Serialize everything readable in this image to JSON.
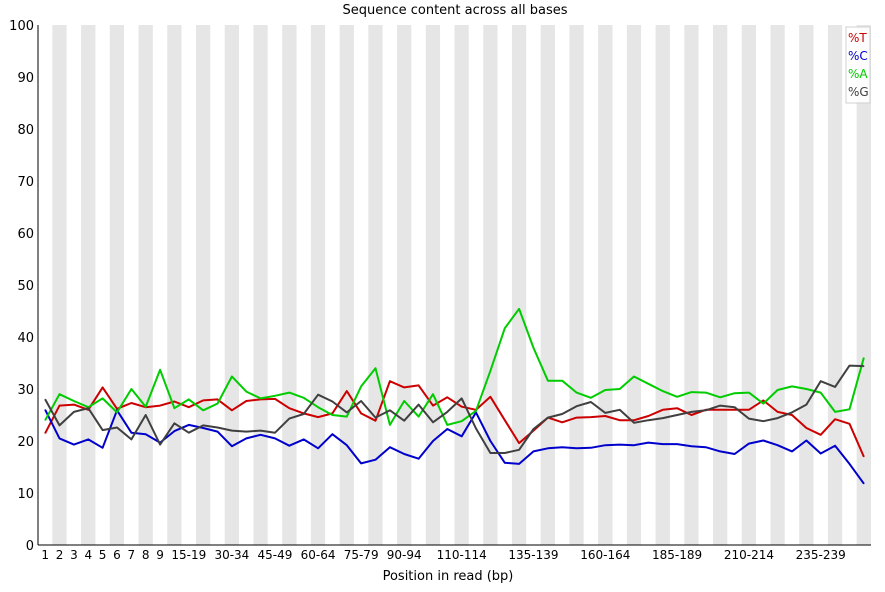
{
  "chart_data": {
    "type": "line",
    "title": "Sequence content across all bases",
    "xlabel": "Position in read (bp)",
    "ylabel": "",
    "ylim": [
      0,
      100
    ],
    "yticks": [
      0,
      10,
      20,
      30,
      40,
      50,
      60,
      70,
      80,
      90,
      100
    ],
    "grid": "vertical alternating bands",
    "legend_position": "top-right",
    "categories": [
      "1",
      "2",
      "3",
      "4",
      "5",
      "6",
      "7",
      "8",
      "9",
      "10-14",
      "15-19",
      "20-24",
      "25-29",
      "30-34",
      "35-39",
      "40-44",
      "45-49",
      "50-54",
      "55-59",
      "60-64",
      "65-69",
      "70-74",
      "75-79",
      "80-84",
      "85-89",
      "90-94",
      "95-99",
      "100-104",
      "105-109",
      "110-114",
      "115-119",
      "120-124",
      "125-129",
      "130-134",
      "135-139",
      "140-144",
      "145-149",
      "150-154",
      "155-159",
      "160-164",
      "165-169",
      "170-174",
      "175-179",
      "180-184",
      "185-189",
      "190-194",
      "195-199",
      "200-204",
      "205-209",
      "210-214",
      "215-219",
      "220-224",
      "225-229",
      "230-234",
      "235-239",
      "240-244",
      "245-249",
      "250-251"
    ],
    "x_tick_labels": [
      "1",
      "2",
      "3",
      "4",
      "5",
      "6",
      "7",
      "8",
      "9",
      "15-19",
      "30-34",
      "45-49",
      "60-64",
      "75-79",
      "90-94",
      "110-114",
      "135-139",
      "160-164",
      "185-189",
      "210-214",
      "235-239"
    ],
    "series": [
      {
        "name": "%T",
        "color": "#cc0000",
        "values": [
          21.5,
          26.8,
          27.0,
          26.0,
          30.3,
          26.2,
          27.3,
          26.5,
          26.8,
          27.6,
          26.5,
          27.8,
          28.0,
          25.9,
          27.7,
          28.0,
          28.1,
          26.3,
          25.3,
          24.6,
          25.3,
          29.6,
          25.3,
          23.9,
          31.5,
          30.3,
          30.7,
          26.8,
          28.4,
          26.6,
          26.0,
          28.5,
          24.0,
          19.6,
          22.0,
          24.5,
          23.6,
          24.5,
          24.6,
          24.8,
          24.0,
          24.0,
          24.8,
          26.0,
          26.3,
          25.0,
          26.0,
          26.0,
          26.0,
          26.0,
          27.8,
          25.6,
          25.0,
          22.5,
          21.2,
          24.2,
          23.3,
          17.0
        ]
      },
      {
        "name": "%C",
        "color": "#0000cc",
        "values": [
          26.0,
          20.5,
          19.3,
          20.3,
          18.7,
          25.9,
          21.6,
          21.3,
          19.7,
          21.9,
          23.1,
          22.5,
          21.8,
          19.0,
          20.5,
          21.2,
          20.5,
          19.1,
          20.3,
          18.6,
          21.3,
          19.2,
          15.7,
          16.4,
          18.8,
          17.5,
          16.6,
          20.0,
          22.3,
          20.9,
          25.5,
          20.0,
          15.8,
          15.6,
          18.0,
          18.6,
          18.8,
          18.6,
          18.7,
          19.2,
          19.3,
          19.2,
          19.7,
          19.4,
          19.4,
          19.0,
          18.8,
          18.0,
          17.5,
          19.5,
          20.1,
          19.2,
          18.0,
          20.1,
          17.6,
          19.1,
          15.6,
          11.8
        ]
      },
      {
        "name": "%A",
        "color": "#00cc00",
        "values": [
          24.0,
          29.0,
          27.7,
          26.5,
          28.2,
          25.5,
          30.0,
          26.6,
          33.7,
          26.3,
          28.0,
          25.9,
          27.2,
          32.4,
          29.5,
          28.2,
          28.7,
          29.3,
          28.3,
          26.5,
          25.0,
          24.7,
          30.5,
          34.0,
          23.1,
          27.7,
          24.7,
          29.0,
          23.1,
          23.8,
          25.8,
          33.5,
          41.7,
          45.4,
          37.9,
          31.6,
          31.6,
          29.3,
          28.3,
          29.8,
          30.0,
          32.4,
          31.0,
          29.6,
          28.5,
          29.4,
          29.3,
          28.4,
          29.2,
          29.3,
          27.2,
          29.8,
          30.5,
          30.0,
          29.3,
          25.6,
          26.1,
          36.0
        ]
      },
      {
        "name": "%G",
        "color": "#404040",
        "values": [
          28.0,
          23.0,
          25.6,
          26.3,
          22.1,
          22.6,
          20.3,
          25.0,
          19.3,
          23.4,
          21.6,
          23.0,
          22.6,
          22.0,
          21.8,
          22.0,
          21.6,
          24.3,
          25.2,
          28.9,
          27.6,
          25.5,
          27.7,
          24.5,
          25.9,
          23.9,
          27.0,
          23.6,
          25.6,
          28.2,
          22.4,
          17.7,
          17.7,
          18.3,
          22.3,
          24.5,
          25.2,
          26.7,
          27.5,
          25.4,
          26.0,
          23.5,
          24.0,
          24.4,
          25.0,
          25.6,
          25.9,
          26.8,
          26.5,
          24.3,
          23.8,
          24.4,
          25.5,
          27.0,
          31.5,
          30.4,
          34.5,
          34.4
        ]
      }
    ]
  }
}
